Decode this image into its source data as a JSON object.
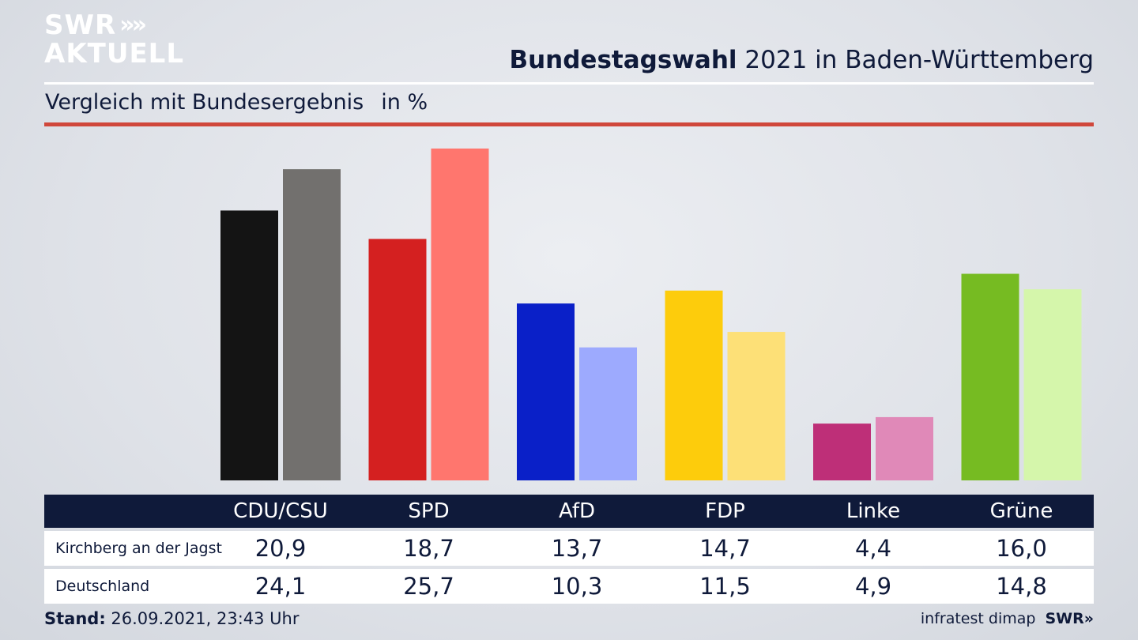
{
  "logo": {
    "line1": "SWR",
    "chevrons": "»",
    "line2": "AKTUELL"
  },
  "header": {
    "title_bold": "Bundestagswahl",
    "title_rest": " 2021 in Baden-Württemberg",
    "subtitle": "Vergleich mit Bundesergebnis",
    "unit": "in %"
  },
  "chart_data": {
    "type": "bar",
    "title": "Bundestagswahl 2021 in Baden-Württemberg",
    "subtitle": "Vergleich mit Bundesergebnis",
    "unit": "in %",
    "categories": [
      "CDU/CSU",
      "SPD",
      "AfD",
      "FDP",
      "Linke",
      "Grüne"
    ],
    "series": [
      {
        "name": "Kirchberg an der Jagst",
        "values": [
          "20,9",
          "18,7",
          "13,7",
          "14,7",
          "4,4",
          "16,0"
        ],
        "numeric": [
          20.9,
          18.7,
          13.7,
          14.7,
          4.4,
          16.0
        ],
        "colors": [
          "#141414",
          "#d42020",
          "#0a20c8",
          "#fdcc0c",
          "#be2f78",
          "#76bb22"
        ]
      },
      {
        "name": "Deutschland",
        "values": [
          "24,1",
          "25,7",
          "10,3",
          "11,5",
          "4,9",
          "14,8"
        ],
        "numeric": [
          24.1,
          25.7,
          10.3,
          11.5,
          4.9,
          14.8
        ],
        "colors": [
          "#72706e",
          "#ff766e",
          "#9daafe",
          "#fde077",
          "#e089b8",
          "#d5f6ab"
        ]
      }
    ],
    "ylim": [
      0,
      25.7
    ],
    "grid": false,
    "legend": "table-below"
  },
  "footer": {
    "stand_label": "Stand:",
    "stand_value": " 26.09.2021, 23:43 Uhr",
    "source": "infratest dimap",
    "brand": "SWR",
    "brand_chev": "»"
  }
}
